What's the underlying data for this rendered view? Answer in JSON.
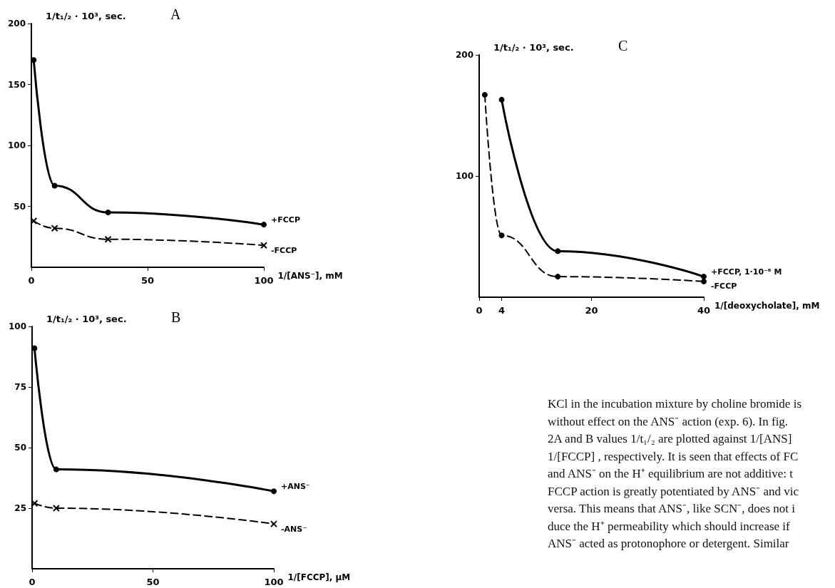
{
  "chart_data": [
    {
      "type": "line",
      "title": "A",
      "xlabel": "1/[ANS⁻], mM",
      "ylabel": "1/t₁/₂ · 10³, sec.",
      "xlim": [
        0,
        100
      ],
      "xticks": [
        0,
        50,
        100
      ],
      "ylim": [
        0,
        200
      ],
      "yticks": [
        50,
        100,
        150,
        200
      ],
      "grid": false,
      "legend": false,
      "series": [
        {
          "name": "+FCCP",
          "color": "#000000",
          "x": [
            1,
            10,
            33,
            100
          ],
          "values": [
            170,
            67,
            45,
            35
          ],
          "marker": "circle",
          "line_style": "solid"
        },
        {
          "name": "-FCCP",
          "color": "#000000",
          "x": [
            1,
            10,
            33,
            100
          ],
          "values": [
            38,
            32,
            23,
            18
          ],
          "marker": "cross",
          "line_style": "dashed"
        }
      ]
    },
    {
      "type": "line",
      "title": "B",
      "xlabel": "1/[FCCP], μM",
      "ylabel": "1/t₁/₂ · 10³, sec.",
      "xlim": [
        0,
        100
      ],
      "xticks": [
        0,
        50,
        100
      ],
      "ylim": [
        0,
        100
      ],
      "yticks": [
        25,
        50,
        75,
        100
      ],
      "grid": false,
      "legend": false,
      "series": [
        {
          "name": "+ANS⁻",
          "color": "#000000",
          "x": [
            1,
            10,
            100
          ],
          "values": [
            91,
            41,
            32
          ],
          "marker": "circle",
          "line_style": "solid"
        },
        {
          "name": "-ANS⁻",
          "color": "#000000",
          "x": [
            1,
            10,
            100
          ],
          "values": [
            27,
            25,
            18.5
          ],
          "marker": "cross",
          "line_style": "dashed"
        }
      ]
    },
    {
      "type": "line",
      "title": "C",
      "xlabel": "1/[deoxycholate], mM",
      "ylabel": "1/t₁/₂ · 10³, sec.",
      "xlim": [
        0,
        40
      ],
      "xticks": [
        0,
        4,
        20,
        40
      ],
      "ylim": [
        0,
        200
      ],
      "yticks": [
        100,
        200
      ],
      "grid": false,
      "legend": false,
      "series": [
        {
          "name": "+FCCP, 1·10⁻⁶ M",
          "color": "#000000",
          "x": [
            4,
            14,
            40
          ],
          "values": [
            163,
            38,
            17
          ],
          "marker": "circle",
          "line_style": "solid"
        },
        {
          "name": "-FCCP",
          "color": "#000000",
          "x": [
            1,
            4,
            14,
            40
          ],
          "values": [
            167,
            51,
            17,
            13
          ],
          "marker": "circle",
          "line_style": "dashed"
        }
      ]
    },
    {
      "type": "other",
      "annotations": [
        "KCl in the incubation mixture by choline bromide is",
        "without effect on the ANS⁻ action (exp. 6). In fig.",
        "2A and B values 1/t₁/₂ are plotted against 1/[ANS]",
        "1/[FCCP] , respectively. It is seen that effects of FC",
        "and ANS⁻ on the H⁺ equilibrium are not additive: t",
        "FCCP action is greatly potentiated by ANS⁻ and vic",
        "versa. This means that ANS⁻, like SCN⁻, does not i",
        "duce the H⁺ permeability which should increase if",
        "ANS⁻ acted as protonophore or detergent. Similar"
      ]
    }
  ]
}
